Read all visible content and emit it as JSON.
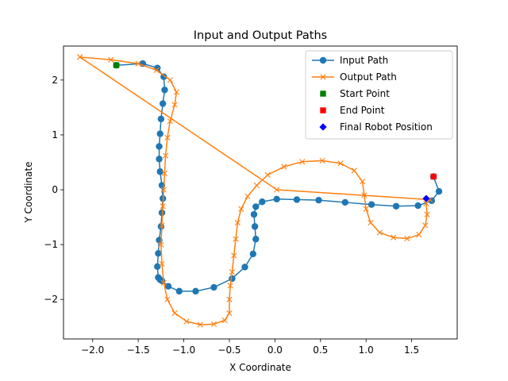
{
  "chart_data": {
    "type": "line",
    "title": "Input and Output Paths",
    "xlabel": "X Coordinate",
    "ylabel": "Y Coordinate",
    "xlim": [
      -2.32,
      2.0
    ],
    "ylim": [
      -2.72,
      2.62
    ],
    "xticks": [
      -2.0,
      -1.5,
      -1.0,
      -0.5,
      0.0,
      0.5,
      1.0,
      1.5
    ],
    "xtick_labels": [
      "−2.0",
      "−1.5",
      "−1.0",
      "−0.5",
      "0.0",
      "0.5",
      "1.0",
      "1.5"
    ],
    "yticks": [
      -2,
      -1,
      0,
      1,
      2
    ],
    "ytick_labels": [
      "−2",
      "−1",
      "0",
      "1",
      "2"
    ],
    "grid": false,
    "legend_position": "top-right",
    "series": [
      {
        "name": "Input Path",
        "color": "#1f77b4",
        "marker": "circle",
        "x": [
          -1.74,
          -1.45,
          -1.29,
          -1.22,
          -1.21,
          -1.23,
          -1.25,
          -1.26,
          -1.27,
          -1.27,
          -1.26,
          -1.24,
          -1.23,
          -1.24,
          -1.25,
          -1.27,
          -1.28,
          -1.29,
          -1.28,
          -1.26,
          -1.24,
          -1.17,
          -1.05,
          -0.87,
          -0.67,
          -0.47,
          -0.33,
          -0.24,
          -0.21,
          -0.22,
          -0.23,
          -0.21,
          -0.14,
          0.02,
          0.24,
          0.48,
          0.77,
          1.06,
          1.33,
          1.57,
          1.72,
          1.8,
          1.74
        ],
        "y": [
          2.27,
          2.3,
          2.22,
          2.06,
          1.82,
          1.57,
          1.29,
          1.02,
          0.79,
          0.56,
          0.33,
          0.08,
          -0.16,
          -0.42,
          -0.67,
          -0.92,
          -1.16,
          -1.4,
          -1.6,
          -1.64,
          -1.66,
          -1.76,
          -1.85,
          -1.85,
          -1.78,
          -1.62,
          -1.41,
          -1.17,
          -0.9,
          -0.67,
          -0.45,
          -0.31,
          -0.22,
          -0.17,
          -0.18,
          -0.19,
          -0.23,
          -0.27,
          -0.3,
          -0.29,
          -0.2,
          -0.03,
          0.24
        ]
      },
      {
        "name": "Output Path",
        "color": "#ff7f0e",
        "marker": "x",
        "x": [
          -2.14,
          -1.8,
          -1.5,
          -1.3,
          -1.15,
          -1.08,
          -1.1,
          -1.15,
          -1.18,
          -1.2,
          -1.21,
          -1.22,
          -1.23,
          -1.24,
          -1.25,
          -1.24,
          -1.22,
          -1.18,
          -1.1,
          -0.97,
          -0.82,
          -0.67,
          -0.55,
          -0.5,
          -0.5,
          -0.49,
          -0.47,
          -0.45,
          -0.43,
          -0.41,
          -0.37,
          -0.3,
          -0.2,
          -0.08,
          0.1,
          0.3,
          0.52,
          0.72,
          0.87,
          0.96,
          0.98,
          1.0,
          1.05,
          1.15,
          1.3,
          1.45,
          1.58,
          1.65,
          1.67,
          1.66,
          1.7,
          0.02,
          -2.14
        ],
        "y": [
          2.42,
          2.37,
          2.3,
          2.18,
          2.0,
          1.78,
          1.55,
          1.25,
          0.95,
          0.62,
          0.3,
          0.0,
          -0.3,
          -0.65,
          -1.0,
          -1.35,
          -1.7,
          -2.0,
          -2.25,
          -2.4,
          -2.46,
          -2.45,
          -2.38,
          -2.25,
          -2.0,
          -1.75,
          -1.5,
          -1.2,
          -0.9,
          -0.6,
          -0.35,
          -0.12,
          0.08,
          0.27,
          0.42,
          0.51,
          0.53,
          0.48,
          0.35,
          0.15,
          -0.1,
          -0.35,
          -0.6,
          -0.78,
          -0.87,
          -0.89,
          -0.82,
          -0.65,
          -0.45,
          -0.25,
          -0.18,
          0.0,
          2.42
        ]
      },
      {
        "name": "Start Point",
        "color": "#008000",
        "marker": "square",
        "x": [
          -1.74
        ],
        "y": [
          2.27
        ]
      },
      {
        "name": "End Point",
        "color": "#ff0000",
        "marker": "square",
        "x": [
          1.74
        ],
        "y": [
          0.24
        ]
      },
      {
        "name": "Final Robot Position",
        "color": "#0000ff",
        "marker": "diamond",
        "x": [
          1.66
        ],
        "y": [
          -0.16
        ]
      }
    ]
  }
}
